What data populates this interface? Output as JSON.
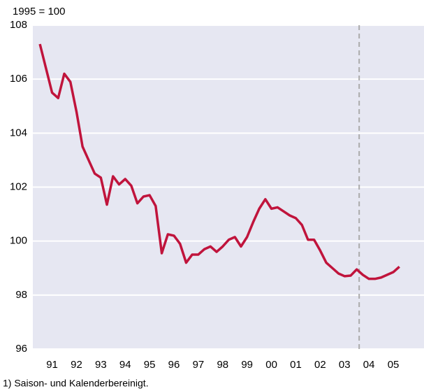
{
  "chart_data": {
    "type": "line",
    "subtitle": "1995 = 100",
    "footnote": "1) Saison- und Kalenderbereinigt.",
    "x": [
      1991,
      1991.25,
      1991.5,
      1991.75,
      1992,
      1992.25,
      1992.5,
      1992.75,
      1993,
      1993.25,
      1993.5,
      1993.75,
      1994,
      1994.25,
      1994.5,
      1994.75,
      1995,
      1995.25,
      1995.5,
      1995.75,
      1996,
      1996.25,
      1996.5,
      1996.75,
      1997,
      1997.25,
      1997.5,
      1997.75,
      1998,
      1998.25,
      1998.5,
      1998.75,
      1999,
      1999.25,
      1999.5,
      1999.75,
      2000,
      2000.25,
      2000.5,
      2000.75,
      2001,
      2001.25,
      2001.5,
      2001.75,
      2002,
      2002.25,
      2002.5,
      2002.75,
      2003,
      2003.25,
      2003.5,
      2003.75,
      2004,
      2004.25,
      2004.5,
      2004.75,
      2005,
      2005.25,
      2005.5,
      2005.75
    ],
    "series": [
      {
        "color": "#c0143c",
        "values": [
          107.3,
          106.4,
          105.5,
          105.3,
          106.2,
          105.9,
          104.8,
          103.5,
          103.0,
          102.5,
          102.35,
          101.35,
          102.4,
          102.1,
          102.3,
          102.05,
          101.4,
          101.65,
          101.7,
          101.3,
          99.55,
          100.25,
          100.2,
          99.9,
          99.2,
          99.5,
          99.5,
          99.7,
          99.8,
          99.6,
          99.8,
          100.05,
          100.15,
          99.8,
          100.15,
          100.7,
          101.2,
          101.55,
          101.2,
          101.25,
          101.1,
          100.95,
          100.85,
          100.6,
          100.05,
          100.05,
          99.65,
          99.2,
          99.0,
          98.8,
          98.7,
          98.72,
          98.95,
          98.75,
          98.6,
          98.6,
          98.65,
          98.75,
          98.85,
          99.05
        ]
      }
    ],
    "xlim": [
      1990.71,
      2006.76
    ],
    "xticks": [
      {
        "value": 1991.5,
        "label": "91"
      },
      {
        "value": 1992.5,
        "label": "92"
      },
      {
        "value": 1993.5,
        "label": "93"
      },
      {
        "value": 1994.5,
        "label": "94"
      },
      {
        "value": 1995.5,
        "label": "95"
      },
      {
        "value": 1996.5,
        "label": "96"
      },
      {
        "value": 1997.5,
        "label": "97"
      },
      {
        "value": 1998.5,
        "label": "98"
      },
      {
        "value": 1999.5,
        "label": "99"
      },
      {
        "value": 2000.5,
        "label": "00"
      },
      {
        "value": 2001.5,
        "label": "01"
      },
      {
        "value": 2002.5,
        "label": "02"
      },
      {
        "value": 2003.5,
        "label": "03"
      },
      {
        "value": 2004.5,
        "label": "04"
      },
      {
        "value": 2005.5,
        "label": "05"
      }
    ],
    "ylim": [
      96,
      108
    ],
    "yticks": [
      96,
      98,
      100,
      102,
      104,
      106,
      108
    ],
    "vline": 2004.1,
    "grid": true
  }
}
